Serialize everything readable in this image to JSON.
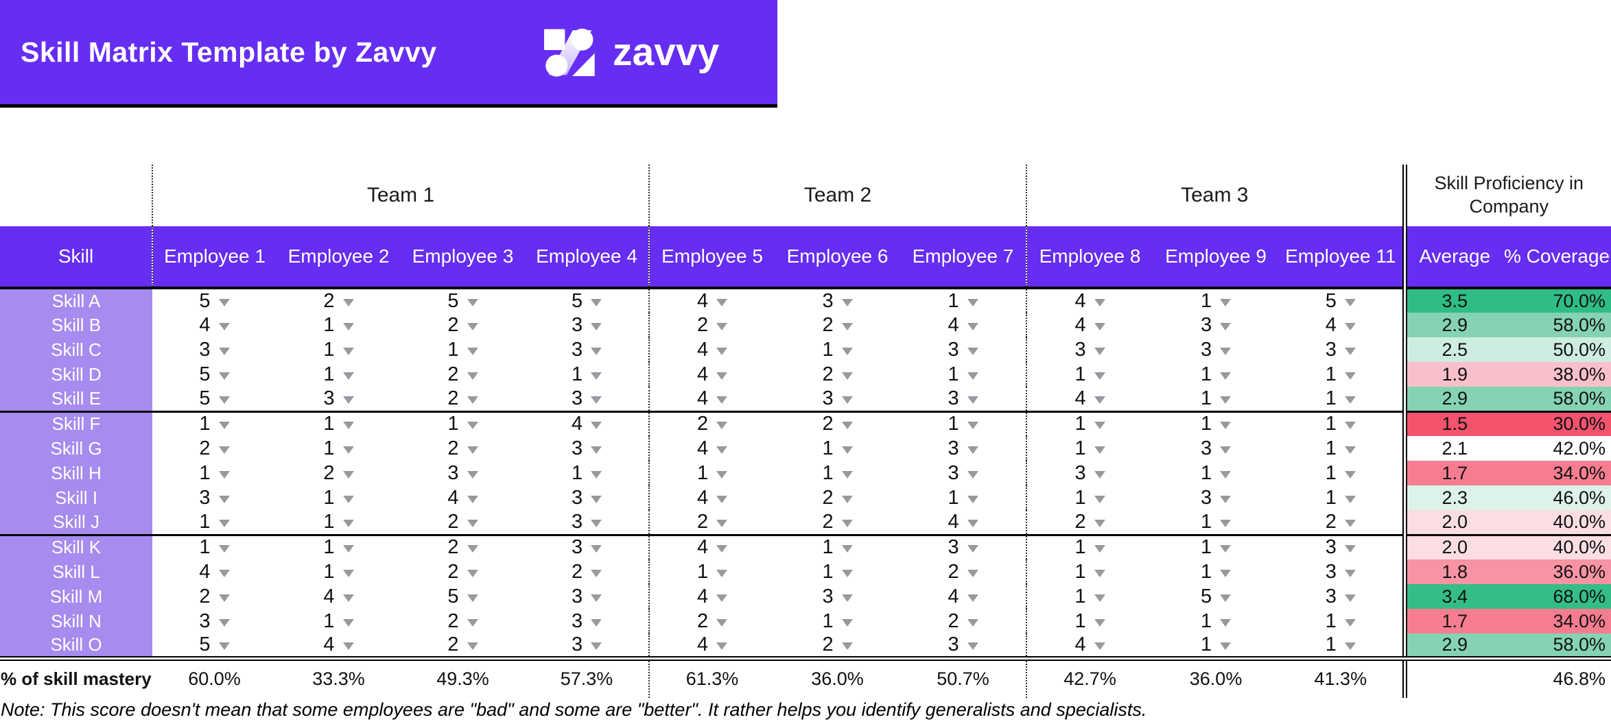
{
  "banner": {
    "title": "Skill Matrix Template by Zavvy",
    "logo_text": "zavvy"
  },
  "colors": {
    "banner_bg": "#662DF2",
    "header_bg": "#662DF2",
    "skill_cell_bg": "#A78BEE",
    "dropdown_arrow": "#97999E",
    "green_strong": "#2FBC85",
    "red_strong": "#F4536E"
  },
  "table": {
    "groups": [
      {
        "label": "Team 1",
        "span": 4
      },
      {
        "label": "Team 2",
        "span": 3
      },
      {
        "label": "Team 3",
        "span": 3
      },
      {
        "label": "Skill Proficiency in Company",
        "span": 2
      }
    ],
    "columns": [
      "Skill",
      "Employee 1",
      "Employee 2",
      "Employee 3",
      "Employee 4",
      "Employee 5",
      "Employee 6",
      "Employee 7",
      "Employee 8",
      "Employee 9",
      "Employee 11",
      "Average",
      "% Coverage"
    ],
    "rows": [
      {
        "skill": "Skill A",
        "scores": [
          5,
          2,
          5,
          5,
          4,
          3,
          1,
          4,
          1,
          5
        ],
        "average": "3.5",
        "coverage": "70.0%",
        "color": "#2FBC85"
      },
      {
        "skill": "Skill B",
        "scores": [
          4,
          1,
          2,
          3,
          2,
          2,
          4,
          4,
          3,
          4
        ],
        "average": "2.9",
        "coverage": "58.0%",
        "color": "#85D3B3"
      },
      {
        "skill": "Skill C",
        "scores": [
          3,
          1,
          1,
          3,
          4,
          1,
          3,
          3,
          3,
          3
        ],
        "average": "2.5",
        "coverage": "50.0%",
        "color": "#CDEDE0"
      },
      {
        "skill": "Skill D",
        "scores": [
          5,
          1,
          2,
          1,
          4,
          2,
          1,
          1,
          1,
          1
        ],
        "average": "1.9",
        "coverage": "38.0%",
        "color": "#F9C0CC"
      },
      {
        "skill": "Skill E",
        "scores": [
          5,
          3,
          2,
          3,
          4,
          3,
          3,
          4,
          1,
          1
        ],
        "average": "2.9",
        "coverage": "58.0%",
        "color": "#85D3B3"
      },
      {
        "skill": "Skill F",
        "scores": [
          1,
          1,
          1,
          4,
          2,
          2,
          1,
          1,
          1,
          1
        ],
        "average": "1.5",
        "coverage": "30.0%",
        "color": "#F4536E"
      },
      {
        "skill": "Skill G",
        "scores": [
          2,
          1,
          2,
          3,
          4,
          1,
          3,
          1,
          3,
          1
        ],
        "average": "2.1",
        "coverage": "42.0%",
        "color": "#FFFFFF"
      },
      {
        "skill": "Skill H",
        "scores": [
          1,
          2,
          3,
          1,
          1,
          1,
          3,
          3,
          1,
          1
        ],
        "average": "1.7",
        "coverage": "34.0%",
        "color": "#F67D90"
      },
      {
        "skill": "Skill I",
        "scores": [
          3,
          1,
          4,
          3,
          4,
          2,
          1,
          1,
          3,
          1
        ],
        "average": "2.3",
        "coverage": "46.0%",
        "color": "#DDF2E9"
      },
      {
        "skill": "Skill J",
        "scores": [
          1,
          1,
          2,
          3,
          2,
          2,
          4,
          2,
          1,
          2
        ],
        "average": "2.0",
        "coverage": "40.0%",
        "color": "#FBDDE4"
      },
      {
        "skill": "Skill K",
        "scores": [
          1,
          1,
          2,
          3,
          4,
          1,
          3,
          1,
          1,
          3
        ],
        "average": "2.0",
        "coverage": "40.0%",
        "color": "#FBDDE4"
      },
      {
        "skill": "Skill L",
        "scores": [
          4,
          1,
          2,
          2,
          1,
          1,
          2,
          1,
          1,
          3
        ],
        "average": "1.8",
        "coverage": "36.0%",
        "color": "#F794A3"
      },
      {
        "skill": "Skill M",
        "scores": [
          2,
          4,
          5,
          3,
          4,
          3,
          4,
          1,
          5,
          3
        ],
        "average": "3.4",
        "coverage": "68.0%",
        "color": "#35BD87"
      },
      {
        "skill": "Skill N",
        "scores": [
          3,
          1,
          2,
          3,
          2,
          1,
          2,
          1,
          1,
          1
        ],
        "average": "1.7",
        "coverage": "34.0%",
        "color": "#F67D90"
      },
      {
        "skill": "Skill O",
        "scores": [
          5,
          4,
          2,
          3,
          4,
          2,
          3,
          4,
          1,
          1
        ],
        "average": "2.9",
        "coverage": "58.0%",
        "color": "#85D3B3"
      }
    ],
    "mastery": {
      "label": "% of skill mastery",
      "values": [
        "60.0%",
        "33.3%",
        "49.3%",
        "57.3%",
        "61.3%",
        "36.0%",
        "50.7%",
        "42.7%",
        "36.0%",
        "41.3%"
      ],
      "overall": "46.8%"
    },
    "note": "Note: This score doesn't mean that some employees are \"bad\" and some are \"better\". It rather helps you identify generalists and specialists."
  }
}
